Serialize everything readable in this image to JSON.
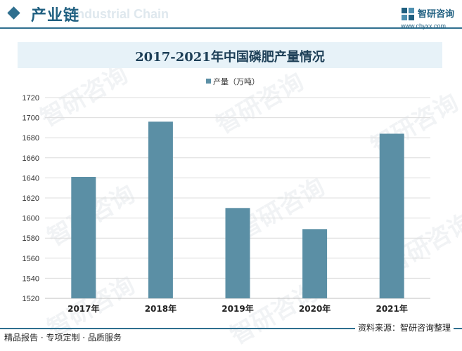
{
  "header": {
    "section_title": "产业链",
    "section_subtitle": "Industrial Chain",
    "brand_name": "智研咨询",
    "brand_url": "www.chyxx.com"
  },
  "watermark_text": "智研咨询",
  "chart_data": {
    "type": "bar",
    "title": "2017-2021年中国磷肥产量情况",
    "categories": [
      "2017年",
      "2018年",
      "2019年",
      "2020年",
      "2021年"
    ],
    "series": [
      {
        "name": "产量（万吨）",
        "values": [
          1641,
          1696,
          1610,
          1589,
          1684
        ]
      }
    ],
    "ylim": [
      1520,
      1720
    ],
    "yticks": [
      1520,
      1540,
      1560,
      1580,
      1600,
      1620,
      1640,
      1660,
      1680,
      1700,
      1720
    ],
    "ytick_labels": [
      "1520",
      "1540",
      "1560",
      "1580",
      "1600",
      "1620",
      "1640",
      "1660",
      "1680",
      "1700",
      "1720"
    ],
    "grid": true,
    "legend_position": "top-center",
    "bar_color": "#5b8fa5"
  },
  "footer": {
    "left_text": "精品报告 · 专项定制 · 品质服务",
    "right_text": "资料来源：智研咨询整理"
  }
}
